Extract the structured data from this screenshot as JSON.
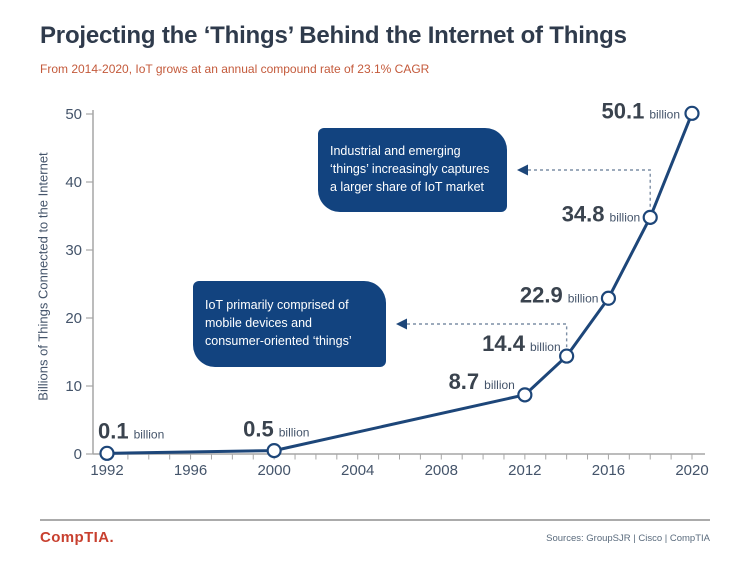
{
  "page": {
    "title": "Projecting the ‘Things’ Behind the Internet of Things",
    "subtitle": "From 2014-2020, IoT grows at an annual compound rate of 23.1% CAGR"
  },
  "footer": {
    "logo": "CompTIA.",
    "sources": "Sources: GroupSJR | Cisco | CompTIA"
  },
  "colors": {
    "title": "#2F3B4C",
    "subtitle": "#C45A3B",
    "line": "#1D4679",
    "marker_fill": "#FFFFFF",
    "callout_bg": "#12437F",
    "callout_text": "#FFFFFF",
    "axis": "#A6A6A6",
    "tick_label": "#44546A",
    "data_label": "#3A434E",
    "unit_label": "#44546A",
    "connector": "#7D8FA5",
    "logo": "#C8402F",
    "sources": "#5A6B7D"
  },
  "chart_data": {
    "type": "line",
    "title": "",
    "xlabel": "",
    "ylabel": "Billions of Things Connected to the Internet",
    "x": [
      1992,
      2000,
      2012,
      2014,
      2016,
      2018,
      2020
    ],
    "values": [
      0.1,
      0.5,
      8.7,
      14.4,
      22.9,
      34.8,
      50.1
    ],
    "unit": "billion",
    "x_range": [
      1992,
      2020
    ],
    "x_minor_tick_step": 1,
    "x_tick_labels": [
      "1992",
      "1996",
      "2000",
      "2004",
      "2008",
      "2012",
      "2016",
      "2020"
    ],
    "y_ticks": [
      "0",
      "10",
      "20",
      "30",
      "40",
      "50"
    ],
    "ylim": [
      0,
      50
    ],
    "grid": false,
    "legend": "none",
    "marker": "open-circle",
    "annotations": [
      {
        "text": "Industrial and emerging ‘things’ increasingly captures a larger share of IoT market",
        "target_year": 2018,
        "target_value": 34.8
      },
      {
        "text": "IoT primarily comprised of mobile devices and consumer-oriented ‘things’",
        "target_year": 2014,
        "target_value": 14.4
      }
    ]
  }
}
